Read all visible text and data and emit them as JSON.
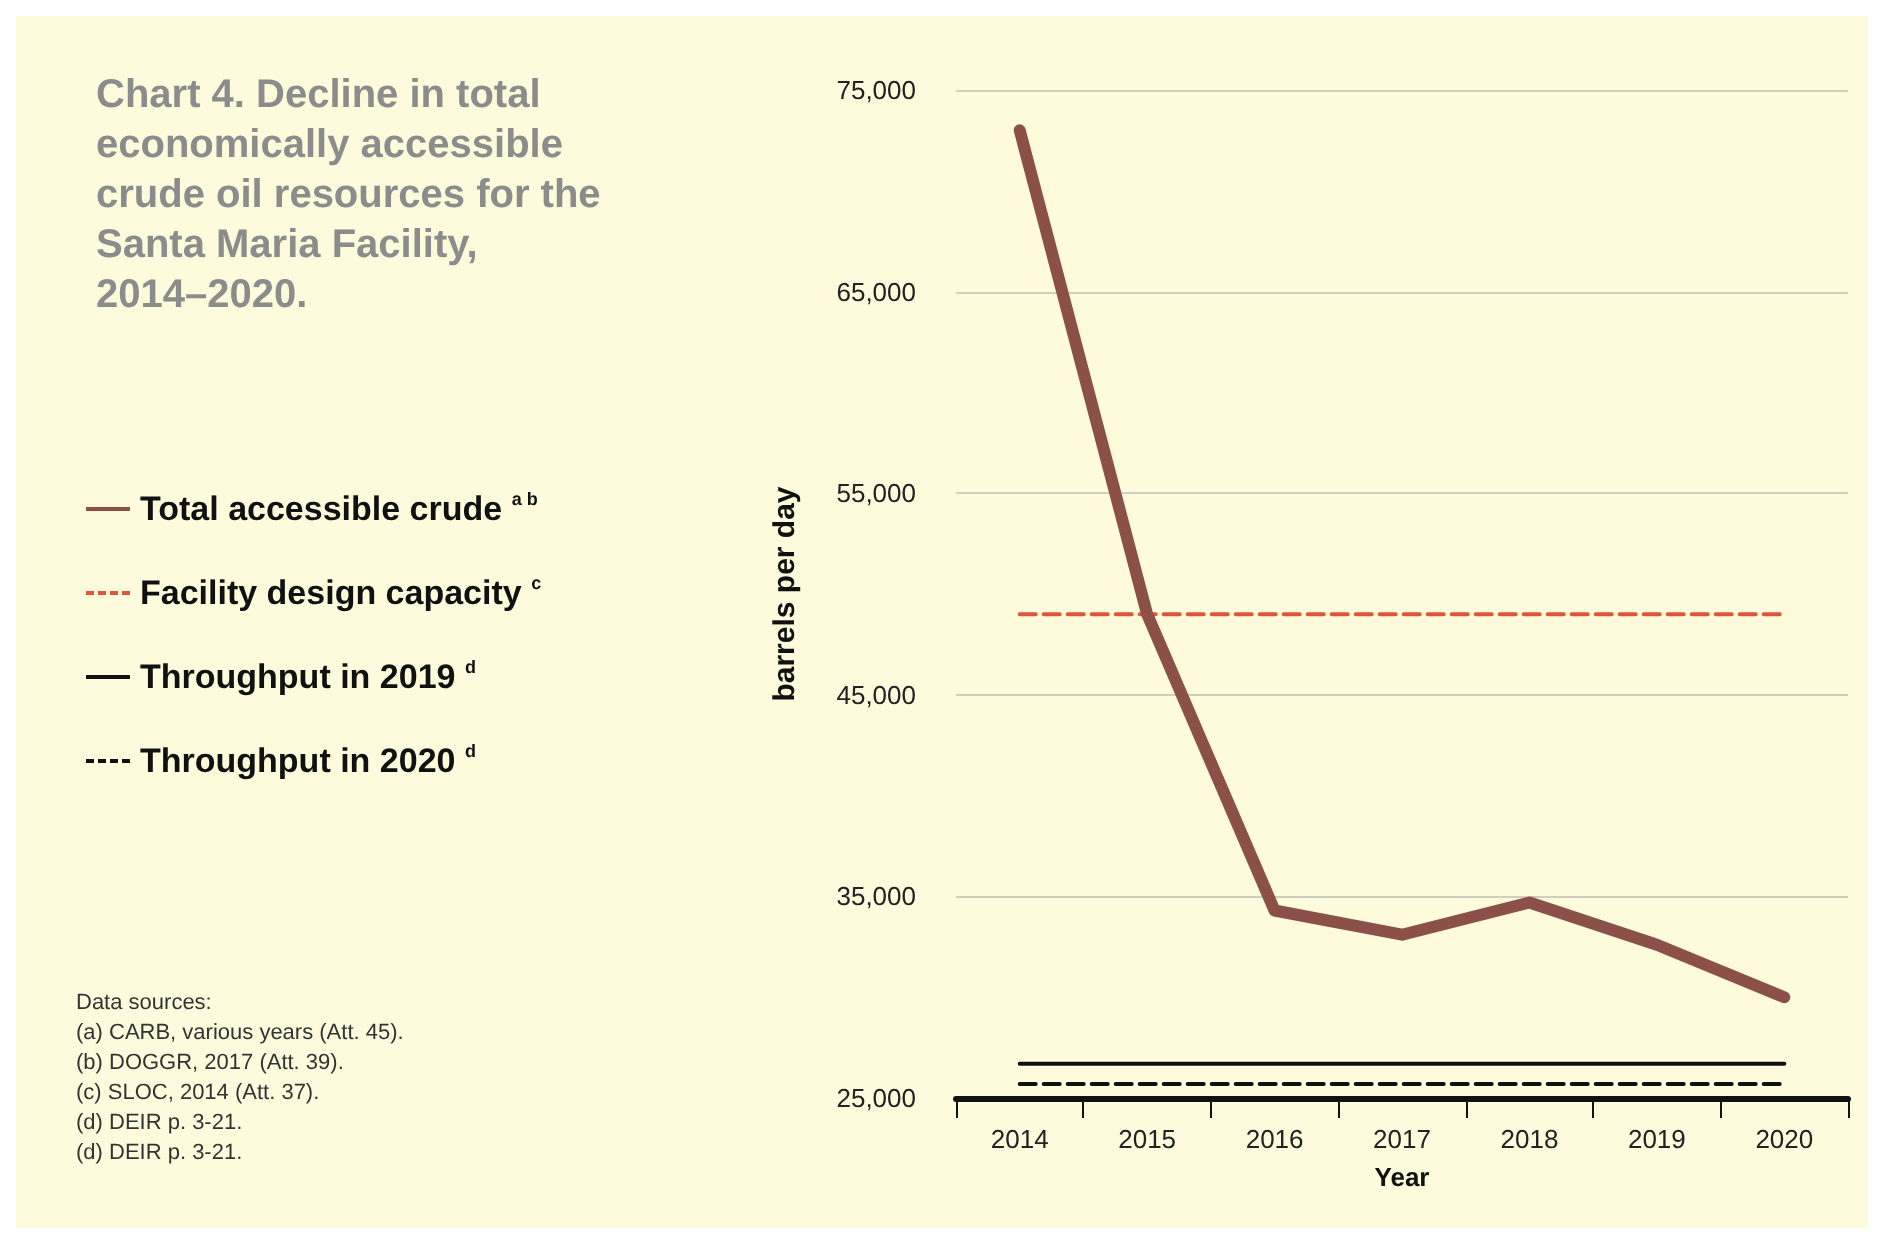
{
  "chart_data": {
    "type": "line",
    "title": "Chart 4. Decline in total economically accessible crude oil resources for the Santa Maria Facility, 2014–2020.",
    "xlabel": "Year",
    "ylabel": "barrels per day",
    "categories": [
      "2014",
      "2015",
      "2016",
      "2017",
      "2018",
      "2019",
      "2020"
    ],
    "series": [
      {
        "name": "Total accessible crude $^{a b}$",
        "color": "#8b5148",
        "line_style": "solid",
        "values": [
          73000,
          49000,
          34300,
          33100,
          34700,
          32600,
          30000
        ]
      },
      {
        "name": "Facility design capacity $^{c}$",
        "color": "#e0553a",
        "line_style": "dashed",
        "values": [
          49000,
          49000,
          49000,
          49000,
          49000,
          49000,
          49000
        ]
      },
      {
        "name": "Throughput in 2019 $^{d}$",
        "color": "#111111",
        "line_style": "solid",
        "values": [
          26700,
          26700,
          26700,
          26700,
          26700,
          26700,
          26700
        ]
      },
      {
        "name": "Throughput in 2020 $^{d}$",
        "color": "#111111",
        "line_style": "dashed",
        "values": [
          25700,
          25700,
          25700,
          25700,
          25700,
          25700,
          25700
        ]
      }
    ],
    "ylim": [
      25000,
      75000
    ],
    "yticks": [
      {
        "value": 25000,
        "label": "25,000"
      },
      {
        "value": 35000,
        "label": "35,000"
      },
      {
        "value": 45000,
        "label": "45,000"
      },
      {
        "value": 55000,
        "label": "55,000"
      },
      {
        "value": 65000,
        "label": "65,000"
      },
      {
        "value": 75000,
        "label": "75,000"
      }
    ],
    "grid": "y",
    "legend": "left",
    "marker": "none",
    "annotations": [
      "Data sources:",
      "(a) CARB, various years (Att. 45).",
      "(b) DOGGR, 2017 (Att. 39).",
      "(c) SLOC, 2014 (Att. 37).",
      "(d) DEIR p. 3-21.",
      "(d) DEIR p. 3-21."
    ]
  }
}
